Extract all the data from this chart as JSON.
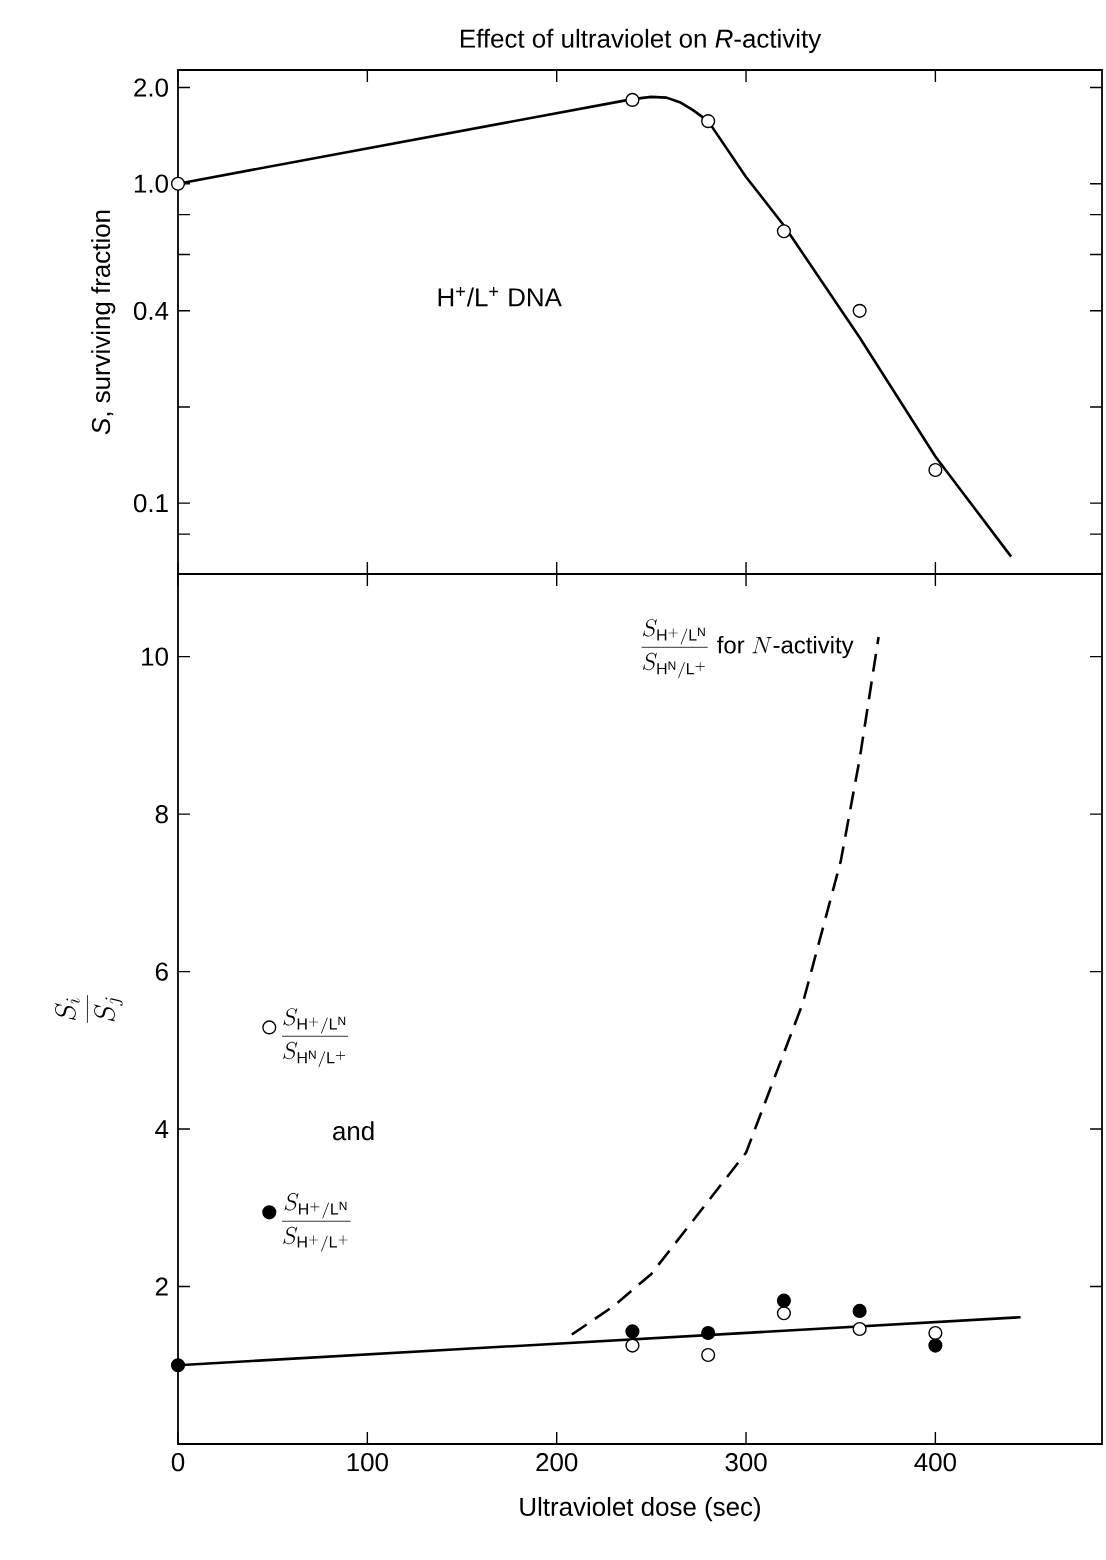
{
  "chart_data": [
    {
      "type": "scatter",
      "title": "Effect of ultraviolet on *R*-activity",
      "ylabel": "*S*, surviving fraction",
      "log": "y",
      "xlim": [
        0,
        488
      ],
      "ylim": [
        0.06,
        2.27
      ],
      "xticks": [
        0,
        100,
        200,
        300,
        400
      ],
      "yticks": [
        {
          "value": 0.08,
          "label": null
        },
        {
          "value": 0.1,
          "label": "0.1"
        },
        {
          "value": 0.2,
          "label": null
        },
        {
          "value": 0.4,
          "label": "0.4"
        },
        {
          "value": 0.6,
          "label": null
        },
        {
          "value": 0.8,
          "label": null
        },
        {
          "value": 1.0,
          "label": "1.0"
        },
        {
          "value": 2.0,
          "label": "2.0"
        }
      ],
      "tick_labels": "y",
      "annotations": [
        "H$^{+}$/L$^{+}$ DNA"
      ],
      "series": [
        {
          "color": "#ffffff",
          "marker": "circle",
          "x": [
            0,
            240,
            280,
            320,
            360,
            400
          ],
          "values": [
            1.0,
            1.83,
            1.57,
            0.71,
            0.4,
            0.127
          ]
        },
        {
          "type": "line",
          "color": "#000000",
          "marker": "none",
          "line_style": "solid",
          "x": [
            0,
            240,
            250,
            258,
            265,
            272,
            280,
            300,
            320,
            360,
            400,
            440
          ],
          "values": [
            1.0,
            1.84,
            1.87,
            1.86,
            1.8,
            1.7,
            1.57,
            1.05,
            0.74,
            0.33,
            0.14,
            0.068
          ]
        }
      ]
    },
    {
      "type": "scatter",
      "xlabel": "Ultraviolet dose (sec)",
      "ylabel": "\\frac{S_i}{S_j}",
      "xlim": [
        0,
        488
      ],
      "ylim": [
        0,
        11.05
      ],
      "xticks": [
        0,
        100,
        200,
        300,
        400
      ],
      "yticks": [
        2,
        4,
        6,
        8,
        10
      ],
      "legend": "left",
      "annotations": [
        "and"
      ],
      "series": [
        {
          "name": "\\frac{S_{\\mathrm{H^+/L^N}}}{S_{\\mathrm{H^N/L^+}}}",
          "color": "#ffffff",
          "marker": "circle",
          "x": [
            240,
            280,
            320,
            360,
            400
          ],
          "values": [
            1.25,
            1.13,
            1.66,
            1.46,
            1.41
          ]
        },
        {
          "name": "\\frac{S_{\\mathrm{H^+/L^N}}}{S_{\\mathrm{H^+/L^+}}}",
          "color": "#000000",
          "marker": "circle",
          "x": [
            0,
            240,
            280,
            320,
            360,
            400
          ],
          "values": [
            1.0,
            1.43,
            1.41,
            1.82,
            1.69,
            1.25
          ]
        },
        {
          "type": "line",
          "color": "#000000",
          "marker": "none",
          "line_style": "solid",
          "x": [
            0,
            445
          ],
          "values": [
            1.0,
            1.61
          ]
        },
        {
          "type": "line",
          "name": "\\frac{S_{\\mathrm{H^+/L^N}}}{S_{\\mathrm{H^N/L^+}}}\\ \\mbox{for }N\\mbox{-activity}",
          "color": "#000000",
          "marker": "none",
          "line_style": "dashed",
          "x": [
            208,
            230,
            250,
            300,
            330,
            350,
            360,
            370
          ],
          "values": [
            1.39,
            1.75,
            2.16,
            3.7,
            5.6,
            7.4,
            8.7,
            10.25
          ]
        }
      ]
    }
  ]
}
